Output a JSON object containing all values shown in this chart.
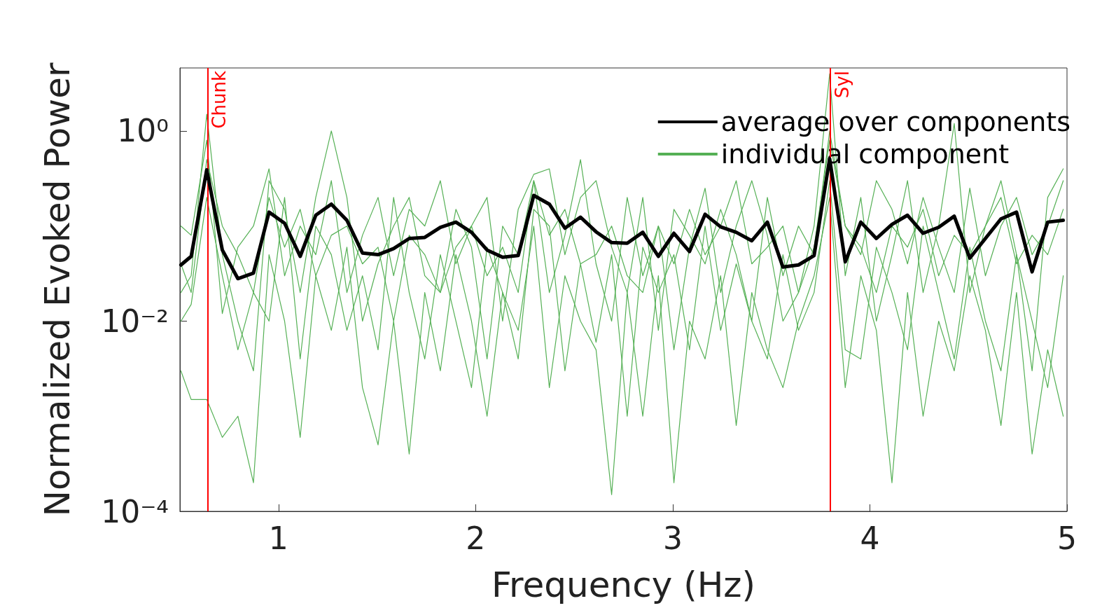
{
  "chart_data": {
    "type": "line",
    "xlabel": "Frequency (Hz)",
    "ylabel": "Normalized Evoked Power",
    "x": [
      0.505,
      0.557,
      0.636,
      0.715,
      0.794,
      0.873,
      0.952,
      1.031,
      1.11,
      1.189,
      1.268,
      1.347,
      1.426,
      1.505,
      1.584,
      1.663,
      1.742,
      1.821,
      1.9,
      1.979,
      2.058,
      2.137,
      2.216,
      2.295,
      2.374,
      2.453,
      2.532,
      2.611,
      2.69,
      2.769,
      2.848,
      2.927,
      3.006,
      3.085,
      3.164,
      3.243,
      3.322,
      3.401,
      3.48,
      3.559,
      3.638,
      3.717,
      3.796,
      3.875,
      3.954,
      4.033,
      4.112,
      4.191,
      4.27,
      4.349,
      4.428,
      4.507,
      4.586,
      4.665,
      4.744,
      4.823,
      4.902,
      4.981
    ],
    "series": [
      {
        "name": "individual component",
        "color": "#55b055",
        "values": [
          0.02,
          0.03,
          1.5,
          0.05,
          0.01,
          0.003,
          0.3,
          0.15,
          0.02,
          0.2,
          1.0,
          0.2,
          0.01,
          0.04,
          0.1,
          0.2,
          0.03,
          0.02,
          0.15,
          0.06,
          0.004,
          0.1,
          0.05,
          0.3,
          0.02,
          0.08,
          0.5,
          0.04,
          0.01,
          0.2,
          0.03,
          0.1,
          0.005,
          0.06,
          0.25,
          0.02,
          0.1,
          0.3,
          0.08,
          0.01,
          0.02,
          0.1,
          4.0,
          0.03,
          0.2,
          0.01,
          0.05,
          0.3,
          0.02,
          0.1,
          1.2,
          0.02,
          0.1,
          0.3,
          0.05,
          0.003,
          0.2,
          0.4
        ]
      },
      {
        "color": "#55b055",
        "values": [
          0.003,
          0.0015,
          0.0015,
          0.0006,
          0.001,
          0.0002,
          0.05,
          0.01,
          0.0006,
          0.03,
          0.008,
          0.06,
          0.002,
          0.0005,
          0.01,
          0.0004,
          0.02,
          0.003,
          0.05,
          0.01,
          0.001,
          0.02,
          0.008,
          0.1,
          0.002,
          0.03,
          0.01,
          0.005,
          0.00015,
          0.02,
          0.001,
          0.03,
          0.0002,
          0.01,
          0.004,
          0.03,
          0.0008,
          0.02,
          0.005,
          0.002,
          0.01,
          0.03,
          0.2,
          0.002,
          0.03,
          0.008,
          0.0002,
          0.02,
          0.001,
          0.01,
          0.003,
          0.03,
          0.008,
          0.0008,
          0.02,
          0.0004,
          0.005,
          0.001
        ]
      },
      {
        "color": "#55b055",
        "values": [
          0.1,
          0.08,
          0.8,
          0.012,
          0.06,
          0.1,
          0.4,
          0.03,
          0.1,
          0.05,
          0.3,
          0.02,
          0.08,
          0.2,
          0.03,
          0.15,
          0.1,
          0.3,
          0.04,
          0.1,
          0.2,
          0.01,
          0.15,
          0.35,
          0.4,
          0.05,
          0.2,
          0.3,
          0.06,
          0.02,
          0.2,
          0.008,
          0.15,
          0.08,
          0.04,
          0.15,
          0.05,
          0.01,
          0.2,
          0.03,
          0.1,
          0.05,
          1.0,
          0.1,
          0.05,
          0.3,
          0.15,
          0.04,
          0.2,
          0.06,
          0.02,
          0.25,
          0.03,
          0.1,
          0.2,
          0.05,
          0.1,
          0.3
        ]
      },
      {
        "color": "#55b055",
        "values": [
          0.01,
          0.015,
          0.2,
          0.03,
          0.005,
          0.02,
          0.01,
          0.2,
          0.004,
          0.1,
          0.05,
          0.008,
          0.03,
          0.005,
          0.2,
          0.02,
          0.004,
          0.05,
          0.01,
          0.002,
          0.06,
          0.02,
          0.004,
          0.15,
          0.1,
          0.003,
          0.04,
          0.006,
          0.05,
          0.001,
          0.06,
          0.02,
          0.05,
          0.005,
          0.1,
          0.008,
          0.04,
          0.01,
          0.004,
          0.05,
          0.008,
          0.02,
          0.3,
          0.005,
          0.004,
          0.06,
          0.02,
          0.005,
          0.1,
          0.02,
          0.004,
          0.06,
          0.01,
          0.003,
          0.05,
          0.01,
          0.002,
          0.03
        ]
      },
      {
        "color": "#55b055",
        "values": [
          0.04,
          0.02,
          0.5,
          0.1,
          0.05,
          0.02,
          0.2,
          0.06,
          0.15,
          0.03,
          0.08,
          0.1,
          0.04,
          0.06,
          0.01,
          0.08,
          0.05,
          0.02,
          0.06,
          0.1,
          0.03,
          0.06,
          0.02,
          0.3,
          0.08,
          0.15,
          0.04,
          0.05,
          0.1,
          0.03,
          0.02,
          0.1,
          0.04,
          0.15,
          0.05,
          0.1,
          0.3,
          0.04,
          0.06,
          0.1,
          0.02,
          0.06,
          0.8,
          0.1,
          0.06,
          0.02,
          0.1,
          0.06,
          0.15,
          0.03,
          0.08,
          0.05,
          0.1,
          0.2,
          0.04,
          0.08,
          0.05,
          0.15
        ]
      },
      {
        "name": "average over components",
        "color": "#000000",
        "values": [
          0.039,
          0.048,
          0.39,
          0.056,
          0.028,
          0.032,
          0.14,
          0.107,
          0.048,
          0.13,
          0.17,
          0.115,
          0.052,
          0.05,
          0.058,
          0.074,
          0.076,
          0.097,
          0.11,
          0.086,
          0.056,
          0.047,
          0.049,
          0.21,
          0.17,
          0.095,
          0.124,
          0.087,
          0.067,
          0.066,
          0.086,
          0.048,
          0.084,
          0.054,
          0.133,
          0.098,
          0.086,
          0.07,
          0.11,
          0.037,
          0.039,
          0.049,
          0.51,
          0.042,
          0.11,
          0.074,
          0.104,
          0.13,
          0.084,
          0.097,
          0.127,
          0.046,
          0.074,
          0.119,
          0.14,
          0.033,
          0.11,
          0.115
        ]
      }
    ],
    "xlim": [
      0.5,
      5
    ],
    "xticks": [
      1,
      2,
      3,
      4,
      5
    ],
    "ylim": [
      0.0001,
      4.6
    ],
    "yticks": [
      {
        "value": 0.0001,
        "label": "10⁻⁴"
      },
      {
        "value": 0.01,
        "label": "10⁻²"
      },
      {
        "value": 1,
        "label": "10⁰"
      }
    ],
    "log": "y",
    "ref_lines": [
      {
        "axis": "x",
        "value": 0.636,
        "label": "Chunk",
        "color": "#ff0000"
      },
      {
        "axis": "x",
        "value": 3.796,
        "label": "Syl",
        "color": "#ff0000"
      }
    ],
    "legend": "top right",
    "grid": false,
    "marker": "none",
    "line_style": "solid"
  }
}
